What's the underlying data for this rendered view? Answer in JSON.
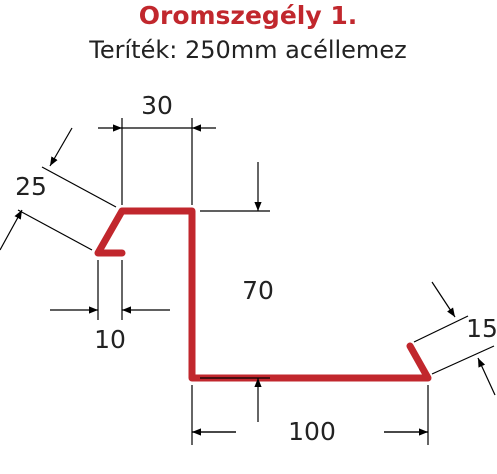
{
  "header": {
    "title": "Oromszegély 1.",
    "subtitle": "Teríték: 250mm acéllemez"
  },
  "dimensions": {
    "top_width": 30,
    "flap_length": 25,
    "height": 70,
    "flap_offset": 10,
    "end_flap": 15,
    "bottom_width": 100
  }
}
